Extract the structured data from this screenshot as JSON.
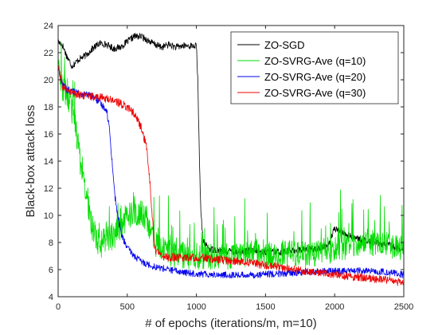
{
  "chart_data": {
    "type": "line",
    "title": "",
    "xlabel": "# of epochs (iterations/m, m=10)",
    "ylabel": "Black-box attack loss",
    "xlim": [
      0,
      2500
    ],
    "ylim": [
      4,
      24
    ],
    "xticks": [
      0,
      500,
      1000,
      1500,
      2000,
      2500
    ],
    "yticks": [
      4,
      6,
      8,
      10,
      12,
      14,
      16,
      18,
      20,
      22,
      24
    ],
    "grid": false,
    "legend_position": "top-right",
    "series": [
      {
        "name": "ZO-SGD",
        "color": "#000000",
        "noise": 0.25,
        "points": [
          [
            0,
            22.8
          ],
          [
            30,
            22.6
          ],
          [
            60,
            21.8
          ],
          [
            100,
            21.0
          ],
          [
            150,
            21.5
          ],
          [
            200,
            21.8
          ],
          [
            250,
            22.3
          ],
          [
            300,
            22.7
          ],
          [
            350,
            22.6
          ],
          [
            400,
            22.3
          ],
          [
            450,
            22.4
          ],
          [
            500,
            22.8
          ],
          [
            550,
            23.2
          ],
          [
            600,
            23.2
          ],
          [
            650,
            22.9
          ],
          [
            700,
            22.6
          ],
          [
            750,
            22.4
          ],
          [
            800,
            22.6
          ],
          [
            850,
            22.4
          ],
          [
            900,
            22.5
          ],
          [
            950,
            22.5
          ],
          [
            1000,
            22.5
          ],
          [
            1010,
            20.0
          ],
          [
            1020,
            15.0
          ],
          [
            1030,
            11.0
          ],
          [
            1040,
            9.0
          ],
          [
            1050,
            8.0
          ],
          [
            1100,
            7.5
          ],
          [
            1200,
            7.4
          ],
          [
            1300,
            7.3
          ],
          [
            1400,
            7.4
          ],
          [
            1500,
            7.3
          ],
          [
            1600,
            7.3
          ],
          [
            1700,
            7.4
          ],
          [
            1800,
            7.5
          ],
          [
            1900,
            7.6
          ],
          [
            1950,
            7.7
          ],
          [
            2000,
            9.0
          ],
          [
            2050,
            8.8
          ],
          [
            2100,
            8.5
          ],
          [
            2200,
            8.2
          ],
          [
            2300,
            8.0
          ],
          [
            2400,
            7.8
          ],
          [
            2450,
            7.6
          ],
          [
            2500,
            7.3
          ]
        ]
      },
      {
        "name": "ZO-SVRG-Ave (q=10)",
        "color": "#00dd00",
        "noise": 1.0,
        "points": [
          [
            0,
            21.0
          ],
          [
            30,
            19.5
          ],
          [
            80,
            18.5
          ],
          [
            120,
            17.0
          ],
          [
            160,
            14.0
          ],
          [
            200,
            11.5
          ],
          [
            250,
            9.0
          ],
          [
            300,
            7.8
          ],
          [
            350,
            8.2
          ],
          [
            400,
            8.5
          ],
          [
            450,
            9.0
          ],
          [
            500,
            10.0
          ],
          [
            550,
            10.0
          ],
          [
            600,
            10.2
          ],
          [
            650,
            9.5
          ],
          [
            700,
            8.0
          ],
          [
            750,
            7.5
          ],
          [
            800,
            7.2
          ],
          [
            900,
            7.0
          ],
          [
            1000,
            7.0
          ],
          [
            1100,
            7.0
          ],
          [
            1200,
            7.0
          ],
          [
            1300,
            7.1
          ],
          [
            1400,
            7.2
          ],
          [
            1500,
            7.0
          ],
          [
            1600,
            7.1
          ],
          [
            1700,
            7.2
          ],
          [
            1800,
            7.1
          ],
          [
            1900,
            7.3
          ],
          [
            2000,
            7.5
          ],
          [
            2100,
            7.8
          ],
          [
            2200,
            8.0
          ],
          [
            2300,
            8.0
          ],
          [
            2400,
            7.8
          ],
          [
            2500,
            7.5
          ]
        ]
      },
      {
        "name": "ZO-SVRG-Ave (q=20)",
        "color": "#0000ee",
        "noise": 0.25,
        "points": [
          [
            0,
            21.0
          ],
          [
            20,
            20.0
          ],
          [
            60,
            19.3
          ],
          [
            150,
            19.0
          ],
          [
            250,
            18.8
          ],
          [
            350,
            17.8
          ],
          [
            370,
            16.5
          ],
          [
            390,
            14.0
          ],
          [
            410,
            11.5
          ],
          [
            430,
            10.0
          ],
          [
            460,
            8.5
          ],
          [
            500,
            7.6
          ],
          [
            550,
            7.0
          ],
          [
            600,
            6.6
          ],
          [
            650,
            6.4
          ],
          [
            700,
            6.2
          ],
          [
            800,
            6.0
          ],
          [
            900,
            5.8
          ],
          [
            1000,
            5.7
          ],
          [
            1200,
            5.6
          ],
          [
            1400,
            5.6
          ],
          [
            1600,
            5.7
          ],
          [
            1800,
            5.8
          ],
          [
            2000,
            5.9
          ],
          [
            2200,
            5.9
          ],
          [
            2400,
            5.8
          ],
          [
            2500,
            5.6
          ]
        ]
      },
      {
        "name": "ZO-SVRG-Ave (q=30)",
        "color": "#ee0000",
        "noise": 0.3,
        "points": [
          [
            0,
            21.0
          ],
          [
            30,
            19.5
          ],
          [
            100,
            19.0
          ],
          [
            200,
            18.8
          ],
          [
            300,
            18.7
          ],
          [
            400,
            18.5
          ],
          [
            500,
            18.0
          ],
          [
            550,
            17.5
          ],
          [
            600,
            16.5
          ],
          [
            640,
            15.0
          ],
          [
            660,
            13.0
          ],
          [
            680,
            10.0
          ],
          [
            700,
            7.5
          ],
          [
            750,
            7.0
          ],
          [
            800,
            6.9
          ],
          [
            900,
            6.9
          ],
          [
            1000,
            6.9
          ],
          [
            1100,
            6.8
          ],
          [
            1200,
            6.7
          ],
          [
            1300,
            6.6
          ],
          [
            1400,
            6.5
          ],
          [
            1500,
            6.3
          ],
          [
            1600,
            6.2
          ],
          [
            1700,
            6.0
          ],
          [
            1800,
            5.9
          ],
          [
            1900,
            5.8
          ],
          [
            2000,
            5.6
          ],
          [
            2100,
            5.5
          ],
          [
            2200,
            5.4
          ],
          [
            2300,
            5.3
          ],
          [
            2400,
            5.2
          ],
          [
            2500,
            5.0
          ]
        ]
      }
    ]
  }
}
